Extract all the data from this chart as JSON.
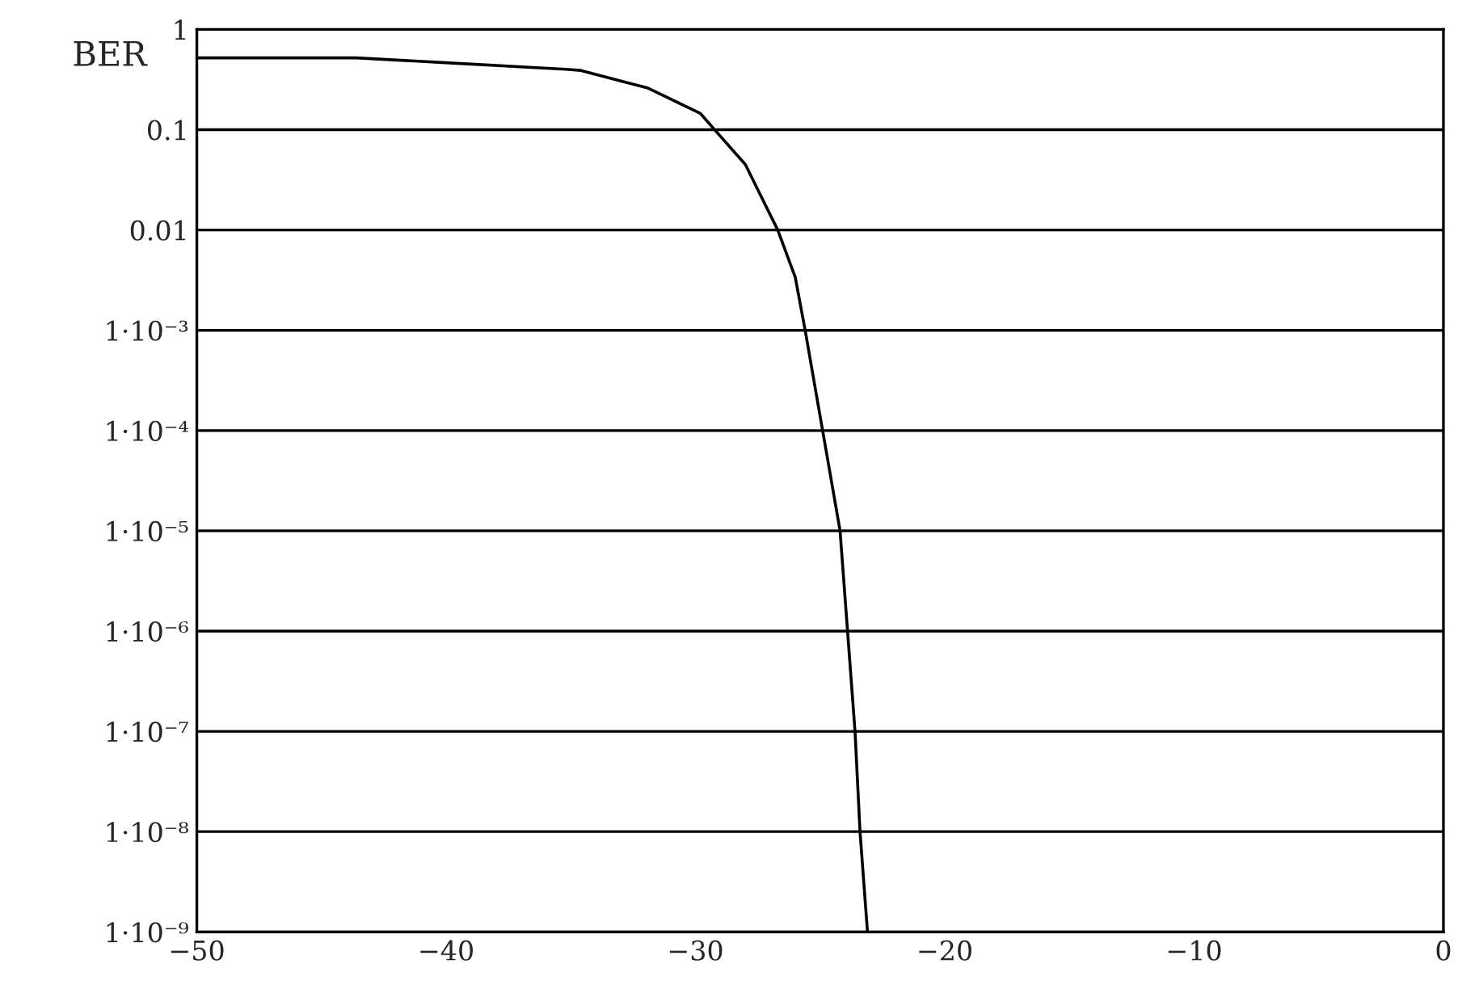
{
  "chart_data": {
    "type": "line",
    "ylabel": "BER",
    "x": [
      -50,
      -43.6,
      -40.3,
      -35.2,
      -34.6,
      -31.9,
      -29.8,
      -29.2,
      -28.0,
      -26.7,
      -26.0,
      -25.6,
      -24.9,
      -24.2,
      -23.9,
      -23.6,
      -23.4,
      -23.1
    ],
    "series": [
      {
        "color": "#000000",
        "values": [
          0.52,
          0.52,
          0.47,
          0.4,
          0.39,
          0.26,
          0.145,
          0.098,
          0.045,
          0.01,
          0.0034,
          0.001,
          0.0001,
          1e-05,
          1e-06,
          1e-07,
          1e-08,
          1e-09
        ]
      }
    ],
    "log": "y",
    "xlim": [
      -50,
      0
    ],
    "ylim": [
      1e-09,
      1
    ],
    "xticks": [
      {
        "value": -50,
        "label": "−50"
      },
      {
        "value": -40,
        "label": "−40"
      },
      {
        "value": -30,
        "label": "−30"
      },
      {
        "value": -20,
        "label": "−20"
      },
      {
        "value": -10,
        "label": "−10"
      },
      0
    ],
    "yticks": [
      {
        "value": 1e-09,
        "label": "1·10⁻⁹"
      },
      {
        "value": 1e-08,
        "label": "1·10⁻⁸"
      },
      {
        "value": 1e-07,
        "label": "1·10⁻⁷"
      },
      {
        "value": 1e-06,
        "label": "1·10⁻⁶"
      },
      {
        "value": 1e-05,
        "label": "1·10⁻⁵"
      },
      {
        "value": 0.0001,
        "label": "1·10⁻⁴"
      },
      {
        "value": 0.001,
        "label": "1·10⁻³"
      },
      0.01,
      0.1,
      1
    ],
    "grid": "y",
    "line_style": "solid",
    "marker": "none"
  }
}
